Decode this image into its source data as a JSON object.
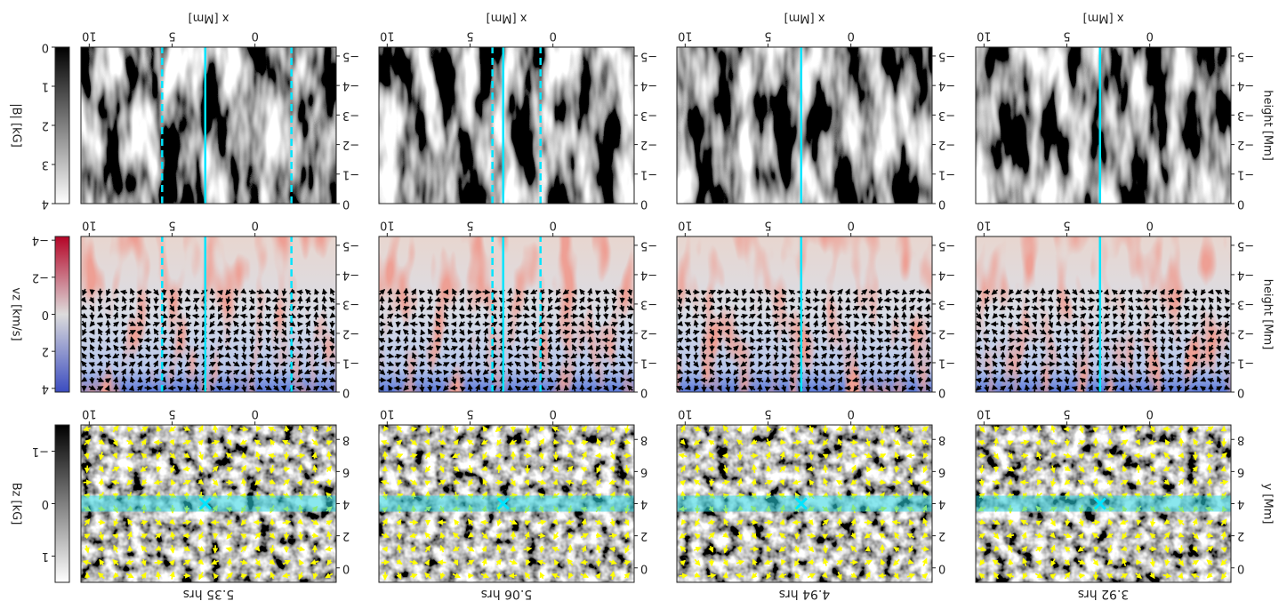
{
  "chart_data": [
    {
      "type": "image",
      "title": "3.92 hrs",
      "ylabel": "y [Mm]",
      "xlim": [
        -4.9,
        10.5
      ],
      "xticks": [
        0,
        5,
        10
      ],
      "ylim": [
        8.9,
        -0.9
      ],
      "yticks": [
        0,
        2,
        4,
        6,
        8
      ],
      "slice_y": 4,
      "marker": [
        3,
        4
      ]
    },
    {
      "type": "image",
      "title": "4.94 hrs",
      "xlim": [
        -4.9,
        10.5
      ],
      "xticks": [
        0,
        5,
        10
      ],
      "ylim": [
        8.9,
        -0.9
      ],
      "yticks": [
        0,
        2,
        4,
        6,
        8
      ],
      "slice_y": 4,
      "marker": [
        3,
        4
      ]
    },
    {
      "type": "image",
      "title": "5.06 hrs",
      "xlim": [
        -4.9,
        10.5
      ],
      "xticks": [
        0,
        5,
        10
      ],
      "ylim": [
        8.9,
        -0.9
      ],
      "yticks": [
        0,
        2,
        4,
        6,
        8
      ],
      "slice_y": 4,
      "marker": [
        3,
        4
      ]
    },
    {
      "type": "image",
      "title": "5.35 hrs",
      "xlim": [
        -4.9,
        10.5
      ],
      "xticks": [
        0,
        5,
        10
      ],
      "ylim": [
        8.9,
        -0.9
      ],
      "yticks": [
        0,
        2,
        4,
        6,
        8
      ],
      "slice_y": 4,
      "marker": [
        3,
        4
      ],
      "colorbar": {
        "label": "Bz [kG]",
        "lim": [
          -1.5,
          1.5
        ],
        "ticks": [
          {
            "value": -1,
            "label": "−1"
          },
          0,
          1
        ],
        "colors": [
          "#000000",
          "#ffffff"
        ]
      }
    },
    {
      "type": "image",
      "ylabel": "height [Mm]",
      "xlim": [
        -4.9,
        10.5
      ],
      "xticks": [
        0,
        5,
        10
      ],
      "ylim": [
        -5.3,
        0
      ],
      "yticks": [
        0,
        {
          "value": -1,
          "label": "−1"
        },
        {
          "value": -2,
          "label": "−2"
        },
        {
          "value": -3,
          "label": "−3"
        },
        {
          "value": -4,
          "label": "−4"
        },
        {
          "value": -5,
          "label": "−5"
        }
      ],
      "slice_x": 3
    },
    {
      "type": "image",
      "xlim": [
        -4.9,
        10.5
      ],
      "xticks": [
        0,
        5,
        10
      ],
      "ylim": [
        -5.3,
        0
      ],
      "yticks": [
        0,
        {
          "value": -1,
          "label": "−1"
        },
        {
          "value": -2,
          "label": "−2"
        },
        {
          "value": -3,
          "label": "−3"
        },
        {
          "value": -4,
          "label": "−4"
        },
        {
          "value": -5,
          "label": "−5"
        }
      ],
      "slice_x": 3
    },
    {
      "type": "image",
      "xlim": [
        -4.9,
        10.5
      ],
      "xticks": [
        0,
        5,
        10
      ],
      "ylim": [
        -5.3,
        0
      ],
      "yticks": [
        0,
        {
          "value": -1,
          "label": "−1"
        },
        {
          "value": -2,
          "label": "−2"
        },
        {
          "value": -3,
          "label": "−3"
        },
        {
          "value": -4,
          "label": "−4"
        },
        {
          "value": -5,
          "label": "−5"
        }
      ],
      "slice_x": 3,
      "dashed_x": [
        0.75,
        3.65
      ]
    },
    {
      "type": "image",
      "xlim": [
        -4.9,
        10.5
      ],
      "xticks": [
        0,
        5,
        10
      ],
      "ylim": [
        -5.3,
        0
      ],
      "yticks": [
        0,
        {
          "value": -1,
          "label": "−1"
        },
        {
          "value": -2,
          "label": "−2"
        },
        {
          "value": -3,
          "label": "−3"
        },
        {
          "value": -4,
          "label": "−4"
        },
        {
          "value": -5,
          "label": "−5"
        }
      ],
      "slice_x": 3,
      "dashed_x": [
        -2.2,
        5.6
      ],
      "colorbar": {
        "label": "vz [km/s]",
        "lim": [
          -4.2,
          4.2
        ],
        "ticks": [
          {
            "value": -4,
            "label": "−4"
          },
          {
            "value": -2,
            "label": "−2"
          },
          0,
          2,
          4
        ],
        "colors": [
          "#b40426",
          "#dddcdc",
          "#3b4cc0"
        ]
      }
    },
    {
      "type": "image",
      "ylabel": "height [Mm]",
      "xlabel": "x [Mm]",
      "xlim": [
        -4.9,
        10.5
      ],
      "xticks": [
        0,
        5,
        10
      ],
      "ylim": [
        -5.3,
        0
      ],
      "yticks": [
        0,
        {
          "value": -1,
          "label": "−1"
        },
        {
          "value": -2,
          "label": "−2"
        },
        {
          "value": -3,
          "label": "−3"
        },
        {
          "value": -4,
          "label": "−4"
        },
        {
          "value": -5,
          "label": "−5"
        }
      ],
      "slice_x": 3
    },
    {
      "type": "image",
      "xlabel": "x [Mm]",
      "xlim": [
        -4.9,
        10.5
      ],
      "xticks": [
        0,
        5,
        10
      ],
      "ylim": [
        -5.3,
        0
      ],
      "yticks": [
        0,
        {
          "value": -1,
          "label": "−1"
        },
        {
          "value": -2,
          "label": "−2"
        },
        {
          "value": -3,
          "label": "−3"
        },
        {
          "value": -4,
          "label": "−4"
        },
        {
          "value": -5,
          "label": "−5"
        }
      ],
      "slice_x": 3
    },
    {
      "type": "image",
      "xlabel": "x [Mm]",
      "xlim": [
        -4.9,
        10.5
      ],
      "xticks": [
        0,
        5,
        10
      ],
      "ylim": [
        -5.3,
        0
      ],
      "yticks": [
        0,
        {
          "value": -1,
          "label": "−1"
        },
        {
          "value": -2,
          "label": "−2"
        },
        {
          "value": -3,
          "label": "−3"
        },
        {
          "value": -4,
          "label": "−4"
        },
        {
          "value": -5,
          "label": "−5"
        }
      ],
      "slice_x": 3,
      "dashed_x": [
        0.75,
        3.65
      ]
    },
    {
      "type": "image",
      "xlabel": "x [Mm]",
      "xlim": [
        -4.9,
        10.5
      ],
      "xticks": [
        0,
        5,
        10
      ],
      "ylim": [
        -5.3,
        0
      ],
      "yticks": [
        0,
        {
          "value": -1,
          "label": "−1"
        },
        {
          "value": -2,
          "label": "−2"
        },
        {
          "value": -3,
          "label": "−3"
        },
        {
          "value": -4,
          "label": "−4"
        },
        {
          "value": -5,
          "label": "−5"
        }
      ],
      "slice_x": 3,
      "dashed_x": [
        -2.2,
        5.6
      ],
      "colorbar": {
        "label": "|B| [kG]",
        "lim": [
          0,
          4
        ],
        "ticks": [
          0,
          1,
          2,
          3,
          4
        ],
        "colors": [
          "#000000",
          "#ffffff"
        ]
      }
    }
  ]
}
